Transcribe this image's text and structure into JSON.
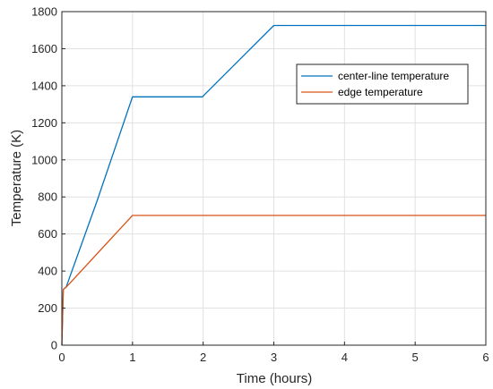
{
  "chart_data": {
    "type": "line",
    "xlabel": "Time (hours)",
    "ylabel": "Temperature (K)",
    "xlim": [
      0,
      6
    ],
    "ylim": [
      0,
      1800
    ],
    "x_ticks": [
      "0",
      "1",
      "2",
      "3",
      "4",
      "5",
      "6"
    ],
    "y_ticks": [
      "0",
      "200",
      "400",
      "600",
      "800",
      "1000",
      "1200",
      "1400",
      "1600",
      "1800"
    ],
    "grid": true,
    "legend_position": "top-right",
    "series": [
      {
        "name": "center-line temperature",
        "color": "#0072BD",
        "x": [
          0,
          0.02,
          0.04,
          0.06,
          0.5,
          1.0,
          1.99,
          2.02,
          3.0,
          6.0
        ],
        "y": [
          0,
          300,
          308,
          312,
          780,
          1340,
          1340,
          1352,
          1725,
          1725
        ]
      },
      {
        "name": "edge temperature",
        "color": "#D95319",
        "x": [
          0,
          0.02,
          0.04,
          0.06,
          1.0,
          6.0
        ],
        "y": [
          0,
          300,
          308,
          312,
          700,
          700
        ]
      }
    ]
  }
}
